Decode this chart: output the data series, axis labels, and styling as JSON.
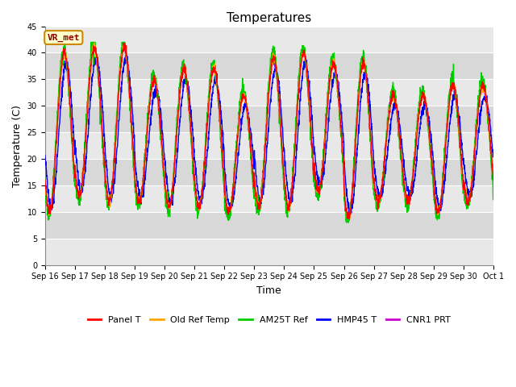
{
  "title": "Temperatures",
  "xlabel": "Time",
  "ylabel": "Temperature (C)",
  "ylim": [
    0,
    45
  ],
  "yticks": [
    0,
    5,
    10,
    15,
    20,
    25,
    30,
    35,
    40,
    45
  ],
  "figure_bg": "#ffffff",
  "plot_bg_light": "#e8e8e8",
  "plot_bg_dark": "#d4d4d4",
  "grid_color": "#ffffff",
  "legend_items": [
    "Panel T",
    "Old Ref Temp",
    "AM25T Ref",
    "HMP45 T",
    "CNR1 PRT"
  ],
  "legend_colors": [
    "#ff0000",
    "#ffa500",
    "#00cc00",
    "#0000ff",
    "#cc00cc"
  ],
  "annotation_text": "VR_met",
  "annotation_bg": "#ffffcc",
  "annotation_border": "#cc8800",
  "n_days": 15,
  "x_tick_labels": [
    "Sep 16",
    "Sep 17",
    "Sep 18",
    "Sep 19",
    "Sep 20",
    "Sep 21",
    "Sep 22",
    "Sep 23",
    "Sep 24",
    "Sep 25",
    "Sep 26",
    "Sep 27",
    "Sep 28",
    "Sep 29",
    "Sep 30",
    "Oct 1"
  ],
  "line_width": 1.0,
  "title_fontsize": 11,
  "axis_label_fontsize": 9,
  "tick_fontsize": 7,
  "legend_fontsize": 8
}
